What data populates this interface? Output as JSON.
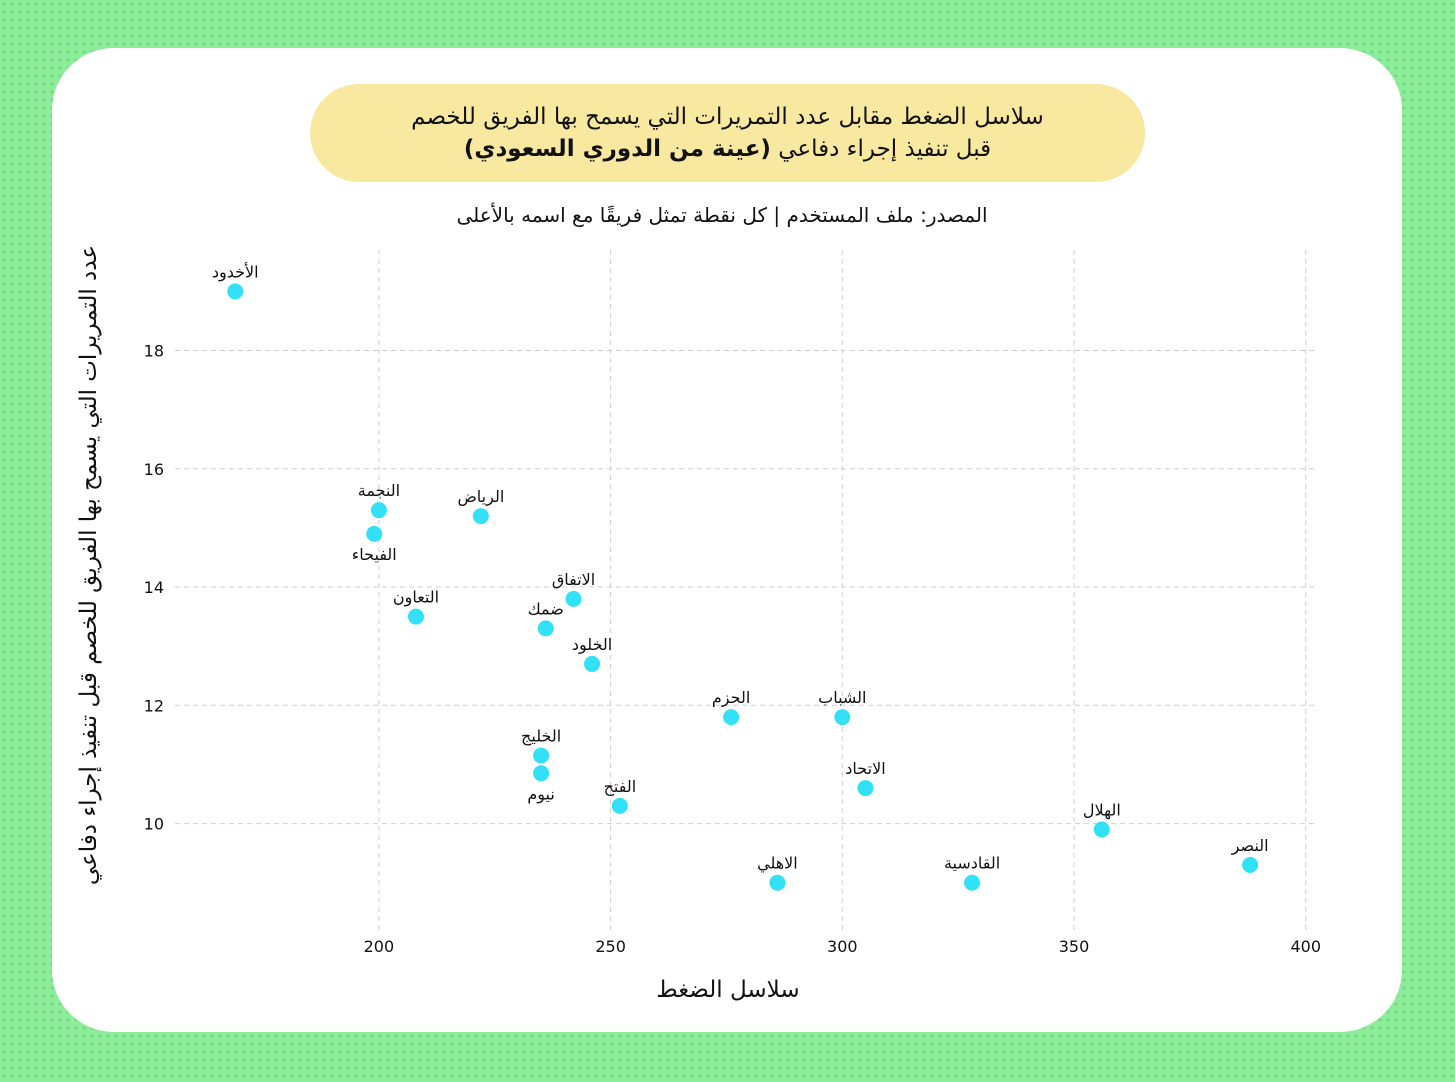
{
  "chart_data": {
    "type": "scatter",
    "title": "سلاسل الضغط مقابل عدد التمريرات التي يسمح بها الفريق للخصم",
    "title_line2": "قبل تنفيذ إجراء دفاعي",
    "title_emphasis": "(عينة من الدوري السعودي)",
    "subtitle": "المصدر: ملف المستخدم | كل نقطة تمثل فريقًا مع اسمه بالأعلى",
    "xlabel": "سلاسل الضغط",
    "ylabel": "عدد التمريرات التي يسمح بها الفريق للخصم قبل تنفيذ إجراء دفاعي",
    "labels": [
      "الأخدود",
      "النجمة",
      "الفيحاء",
      "الرياض",
      "الاتفاق",
      "التعاون",
      "ضمك",
      "الخلود",
      "الحزم",
      "الشباب",
      "الخليج",
      "نيوم",
      "الفتح",
      "الاتحاد",
      "الهلال",
      "النصر",
      "الاهلي",
      "القادسية"
    ],
    "x": [
      169,
      200,
      199,
      222,
      242,
      208,
      236,
      246,
      276,
      300,
      235,
      235,
      252,
      305,
      356,
      388,
      286,
      328
    ],
    "values": [
      19.0,
      15.3,
      14.9,
      15.2,
      13.8,
      13.5,
      13.3,
      12.7,
      11.8,
      11.8,
      11.15,
      10.85,
      10.3,
      10.6,
      9.9,
      9.3,
      9.0,
      9.0
    ],
    "color": "#33e1f6",
    "xlim": [
      156,
      402
    ],
    "ylim": [
      8.2,
      19.7
    ],
    "xticks": [
      200,
      250,
      300,
      350,
      400
    ],
    "yticks": [
      10,
      12,
      14,
      16,
      18
    ],
    "grid": true
  }
}
